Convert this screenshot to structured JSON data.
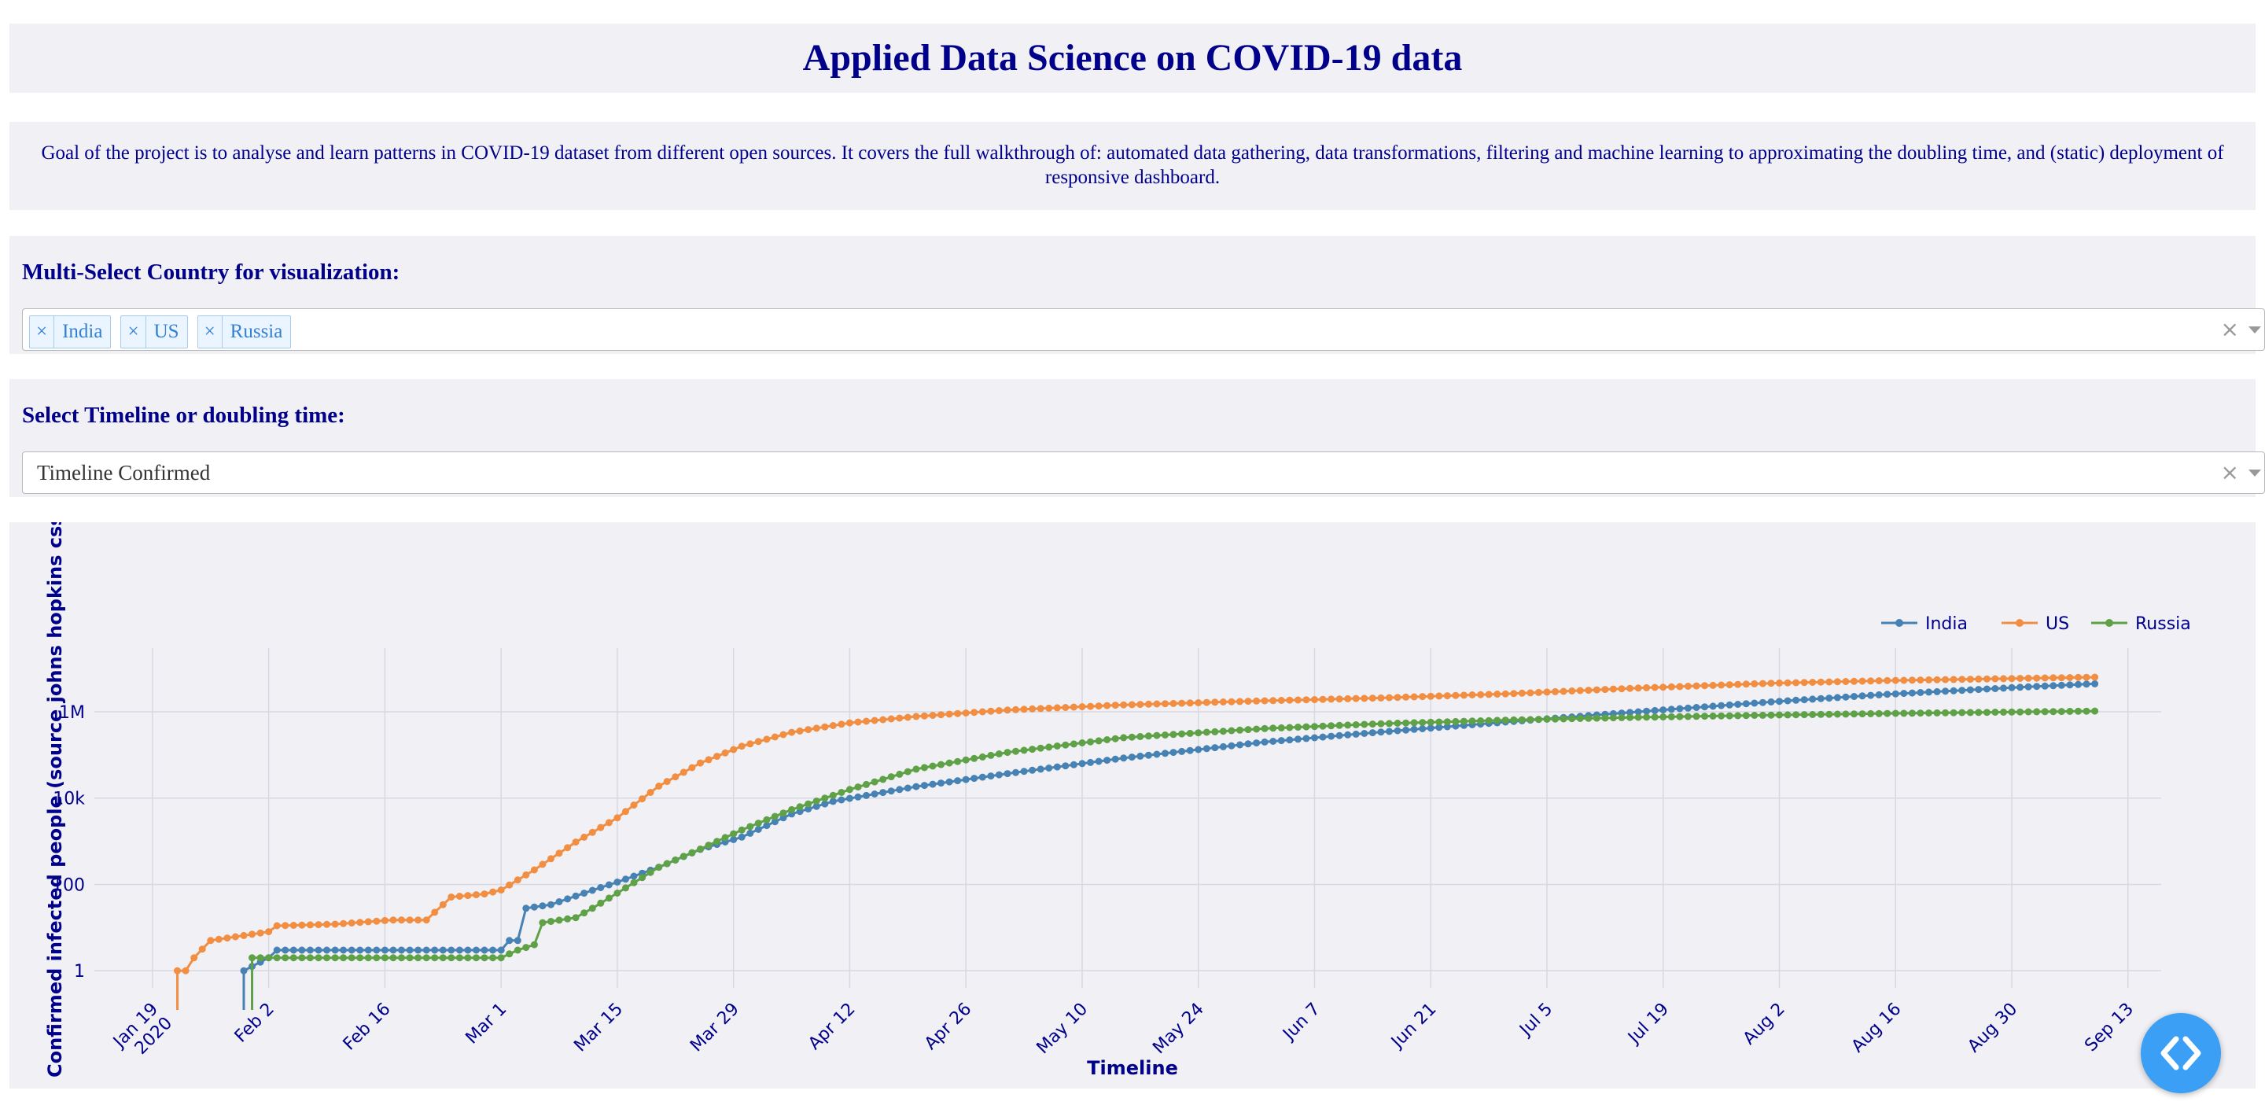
{
  "header": {
    "title": "Applied Data Science on COVID-19 data"
  },
  "description": "Goal of the project is to analyse and learn patterns in COVID-19 dataset from different open sources. It covers the full walkthrough of: automated data gathering, data transformations, filtering and machine learning to approximating the doubling time, and (static) deployment of responsive dashboard.",
  "country_select": {
    "label": "Multi-Select Country for visualization:",
    "selected": [
      "India",
      "US",
      "Russia"
    ],
    "remove_glyph": "×",
    "clear_glyph": "×"
  },
  "type_select": {
    "label": "Select Timeline or doubling time:",
    "value": "Timeline Confirmed",
    "clear_glyph": "×"
  },
  "chart_data": {
    "type": "line",
    "xlabel": "Timeline",
    "ylabel": "Confirmed infected people (source johns hopkins csse)",
    "yscale": "log",
    "ylim": [
      0.4,
      30000000
    ],
    "xlim": [
      "2020-01-12",
      "2020-09-17"
    ],
    "x_ticks": [
      {
        "date": "2020-01-19",
        "label": "Jan 19",
        "sublabel": "2020"
      },
      {
        "date": "2020-02-02",
        "label": "Feb 2"
      },
      {
        "date": "2020-02-16",
        "label": "Feb 16"
      },
      {
        "date": "2020-03-01",
        "label": "Mar 1"
      },
      {
        "date": "2020-03-15",
        "label": "Mar 15"
      },
      {
        "date": "2020-03-29",
        "label": "Mar 29"
      },
      {
        "date": "2020-04-12",
        "label": "Apr 12"
      },
      {
        "date": "2020-04-26",
        "label": "Apr 26"
      },
      {
        "date": "2020-05-10",
        "label": "May 10"
      },
      {
        "date": "2020-05-24",
        "label": "May 24"
      },
      {
        "date": "2020-06-07",
        "label": "Jun 7"
      },
      {
        "date": "2020-06-21",
        "label": "Jun 21"
      },
      {
        "date": "2020-07-05",
        "label": "Jul 5"
      },
      {
        "date": "2020-07-19",
        "label": "Jul 19"
      },
      {
        "date": "2020-08-02",
        "label": "Aug 2"
      },
      {
        "date": "2020-08-16",
        "label": "Aug 16"
      },
      {
        "date": "2020-08-30",
        "label": "Aug 30"
      },
      {
        "date": "2020-09-13",
        "label": "Sep 13"
      }
    ],
    "y_ticks": [
      {
        "value": 1,
        "label": "1"
      },
      {
        "value": 100,
        "label": "100"
      },
      {
        "value": 10000,
        "label": "10k"
      },
      {
        "value": 1000000,
        "label": "1M"
      }
    ],
    "grid": true,
    "legend": "top-right",
    "series": [
      {
        "name": "India",
        "color": "#4682b4",
        "start": "2020-01-30",
        "end": "2020-09-09",
        "points": [
          [
            "2020-01-30",
            1
          ],
          [
            "2020-02-02",
            2
          ],
          [
            "2020-02-03",
            3
          ],
          [
            "2020-03-01",
            3
          ],
          [
            "2020-03-02",
            5
          ],
          [
            "2020-03-03",
            5
          ],
          [
            "2020-03-04",
            28
          ],
          [
            "2020-03-07",
            34
          ],
          [
            "2020-03-12",
            73
          ],
          [
            "2020-03-15",
            113
          ],
          [
            "2020-03-20",
            250
          ],
          [
            "2020-03-25",
            650
          ],
          [
            "2020-03-30",
            1250
          ],
          [
            "2020-04-05",
            4300
          ],
          [
            "2020-04-10",
            8400
          ],
          [
            "2020-04-20",
            18500
          ],
          [
            "2020-05-01",
            37000
          ],
          [
            "2020-05-15",
            85000
          ],
          [
            "2020-06-01",
            200000
          ],
          [
            "2020-06-15",
            340000
          ],
          [
            "2020-07-01",
            600000
          ],
          [
            "2020-07-15",
            970000
          ],
          [
            "2020-08-01",
            1700000
          ],
          [
            "2020-08-15",
            2550000
          ],
          [
            "2020-09-01",
            3800000
          ],
          [
            "2020-09-09",
            4470000
          ]
        ]
      },
      {
        "name": "US",
        "color": "#f28e42",
        "start": "2020-01-22",
        "end": "2020-09-09",
        "points": [
          [
            "2020-01-22",
            1
          ],
          [
            "2020-01-23",
            1
          ],
          [
            "2020-01-24",
            2
          ],
          [
            "2020-01-26",
            5
          ],
          [
            "2020-01-31",
            7
          ],
          [
            "2020-02-02",
            8
          ],
          [
            "2020-02-03",
            11
          ],
          [
            "2020-02-10",
            12
          ],
          [
            "2020-02-17",
            15
          ],
          [
            "2020-02-21",
            15
          ],
          [
            "2020-02-24",
            51
          ],
          [
            "2020-02-28",
            60
          ],
          [
            "2020-03-01",
            74
          ],
          [
            "2020-03-05",
            217
          ],
          [
            "2020-03-10",
            959
          ],
          [
            "2020-03-15",
            3500
          ],
          [
            "2020-03-20",
            19000
          ],
          [
            "2020-03-25",
            65000
          ],
          [
            "2020-03-30",
            160000
          ],
          [
            "2020-04-05",
            335000
          ],
          [
            "2020-04-12",
            555000
          ],
          [
            "2020-04-20",
            780000
          ],
          [
            "2020-05-01",
            1100000
          ],
          [
            "2020-05-15",
            1450000
          ],
          [
            "2020-06-01",
            1800000
          ],
          [
            "2020-06-15",
            2100000
          ],
          [
            "2020-07-01",
            2650000
          ],
          [
            "2020-07-15",
            3500000
          ],
          [
            "2020-08-01",
            4600000
          ],
          [
            "2020-08-15",
            5300000
          ],
          [
            "2020-09-01",
            6000000
          ],
          [
            "2020-09-09",
            6350000
          ]
        ]
      },
      {
        "name": "Russia",
        "color": "#5ea146",
        "start": "2020-01-31",
        "end": "2020-09-09",
        "points": [
          [
            "2020-01-31",
            2
          ],
          [
            "2020-03-01",
            2
          ],
          [
            "2020-03-03",
            3
          ],
          [
            "2020-03-05",
            4
          ],
          [
            "2020-03-06",
            13
          ],
          [
            "2020-03-10",
            17
          ],
          [
            "2020-03-12",
            28
          ],
          [
            "2020-03-15",
            63
          ],
          [
            "2020-03-20",
            250
          ],
          [
            "2020-03-25",
            660
          ],
          [
            "2020-03-30",
            1830
          ],
          [
            "2020-04-05",
            5400
          ],
          [
            "2020-04-12",
            15800
          ],
          [
            "2020-04-20",
            47000
          ],
          [
            "2020-05-01",
            115000
          ],
          [
            "2020-05-15",
            252000
          ],
          [
            "2020-06-01",
            410000
          ],
          [
            "2020-06-15",
            530000
          ],
          [
            "2020-07-01",
            650000
          ],
          [
            "2020-07-15",
            740000
          ],
          [
            "2020-08-01",
            840000
          ],
          [
            "2020-08-15",
            915000
          ],
          [
            "2020-09-01",
            1000000
          ],
          [
            "2020-09-09",
            1040000
          ]
        ]
      }
    ]
  },
  "icons": {
    "fab": "code-brackets-icon"
  }
}
